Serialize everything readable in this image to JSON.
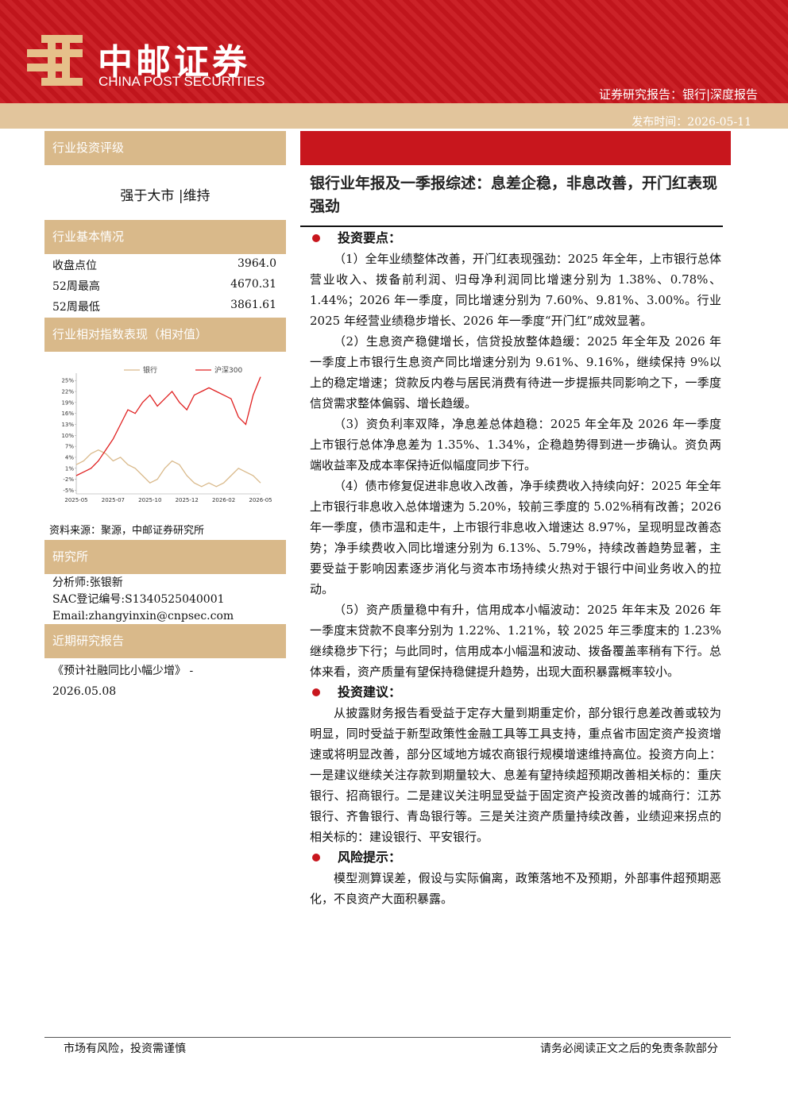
{
  "header": {
    "brand_cn": "中邮证券",
    "brand_en": "CHINA POST SECURITIES",
    "report_type": "证券研究报告：银行|深度报告",
    "publish_date": "发布时间：2026-05-11"
  },
  "sidebar": {
    "rating_title": "行业投资评级",
    "rating": "强于大市 |维持",
    "basic_title": "行业基本情况",
    "basic_rows": [
      [
        "收盘点位",
        "3964.0"
      ],
      [
        "52周最高",
        "4670.31"
      ],
      [
        "52周最低",
        "3861.61"
      ]
    ],
    "perf_title": "行业相对指数表现（相对值）",
    "chart_source": "资料来源：聚源，中邮证券研究所",
    "research_title": "研究所",
    "analyst": [
      "分析师:张银新",
      "SAC登记编号:S1340525040001",
      "Email:zhangyinxin@cnpsec.com"
    ],
    "recent_title": "近期研究报告",
    "recent": "《预计社融同比小幅少增》 - 2026.05.08"
  },
  "chart_data": {
    "type": "line",
    "categories": [
      "2025-05",
      null,
      null,
      null,
      null,
      "2025-07",
      null,
      null,
      null,
      null,
      "2025-10",
      null,
      null,
      null,
      null,
      "2025-12",
      null,
      null,
      null,
      null,
      "2026-02",
      null,
      null,
      null,
      null,
      "2026-05"
    ],
    "series": [
      {
        "name": "银行",
        "color": "#d9b98a",
        "values": [
          2,
          3,
          5,
          6,
          5,
          3,
          4,
          2,
          1,
          -1,
          -3,
          -2,
          1,
          3,
          2,
          -1,
          -3,
          -4,
          -3,
          -4,
          -3,
          -1,
          1,
          0,
          -1,
          -3
        ]
      },
      {
        "name": "沪深300",
        "color": "#e02020",
        "values": [
          -1,
          0,
          1,
          3,
          6,
          9,
          13,
          17,
          16,
          19,
          21,
          18,
          20,
          22,
          19,
          17,
          21,
          22,
          23,
          22,
          21,
          20,
          15,
          13,
          21,
          26
        ]
      }
    ],
    "ylim": [
      -6,
      27
    ],
    "yticks": [
      {
        "value": -5,
        "label": "-5%"
      },
      {
        "value": -2,
        "label": "-2%"
      },
      {
        "value": 1,
        "label": "1%"
      },
      {
        "value": 4,
        "label": "4%"
      },
      {
        "value": 7,
        "label": "7%"
      },
      {
        "value": 10,
        "label": "10%"
      },
      {
        "value": 13,
        "label": "13%"
      },
      {
        "value": 16,
        "label": "16%"
      },
      {
        "value": 19,
        "label": "19%"
      },
      {
        "value": 22,
        "label": "22%"
      },
      {
        "value": 25,
        "label": "25%"
      }
    ],
    "grid": false
  },
  "main": {
    "title": "银行业年报及一季报综述：息差企稳，非息改善，开门红表现强劲",
    "sections": [
      {
        "heading": "投资要点：",
        "paragraphs": [
          "（1）全年业绩整体改善，开门红表现强劲：2025 年全年，上市银行总体营业收入、拨备前利润、归母净利润同比增速分别为 1.38%、0.78%、1.44%；2026 年一季度，同比增速分别为 7.60%、9.81%、3.00%。行业 2025 年经营业绩稳步增长、2026 年一季度“开门红”成效显著。",
          "（2）生息资产稳健增长，信贷投放整体趋缓：2025 年全年及 2026 年一季度上市银行生息资产同比增速分别为 9.61%、9.16%，继续保持 9%以上的稳定增速；贷款反内卷与居民消费有待进一步提振共同影响之下，一季度信贷需求整体偏弱、增长趋缓。",
          "（3）资负利率双降，净息差总体趋稳：2025 年全年及 2026 年一季度上市银行总体净息差为 1.35%、1.34%，企稳趋势得到进一步确认。资负两端收益率及成本率保持近似幅度同步下行。",
          "（4）债市修复促进非息收入改善，净手续费收入持续向好：2025 年全年上市银行非息收入总体增速为 5.20%，较前三季度的 5.02%稍有改善；2026 年一季度，债市温和走牛，上市银行非息收入增速达 8.97%，呈现明显改善态势；净手续费收入同比增速分别为 6.13%、5.79%，持续改善趋势显著，主要受益于影响因素逐步消化与资本市场持续火热对于银行中间业务收入的拉动。",
          "（5）资产质量稳中有升，信用成本小幅波动：2025 年年末及 2026 年一季度末贷款不良率分别为 1.22%、1.21%，较 2025 年三季度末的 1.23%继续稳步下行；与此同时，信用成本小幅温和波动、拨备覆盖率稍有下行。总体来看，资产质量有望保持稳健提升趋势，出现大面积暴露概率较小。"
        ]
      },
      {
        "heading": "投资建议：",
        "paragraphs": [
          "从披露财务报告看受益于定存大量到期重定价，部分银行息差改善或较为明显，同时受益于新型政策性金融工具等工具支持，重点省市固定资产投资增速或将明显改善，部分区域地方城农商银行规模增速维持高位。投资方向上：一是建议继续关注存款到期量较大、息差有望持续超预期改善相关标的：重庆银行、招商银行。二是建议关注明显受益于固定资产投资改善的城商行：江苏银行、齐鲁银行、青岛银行等。三是关注资产质量持续改善，业绩迎来拐点的相关标的：建设银行、平安银行。"
        ]
      },
      {
        "heading": "风险提示：",
        "paragraphs": [
          "模型测算误差，假设与实际偏离，政策落地不及预期，外部事件超预期恶化，不良资产大面积暴露。"
        ]
      }
    ]
  },
  "footer": {
    "left": "市场有风险，投资需谨慎",
    "right": "请务必阅读正文之后的免责条款部分"
  }
}
